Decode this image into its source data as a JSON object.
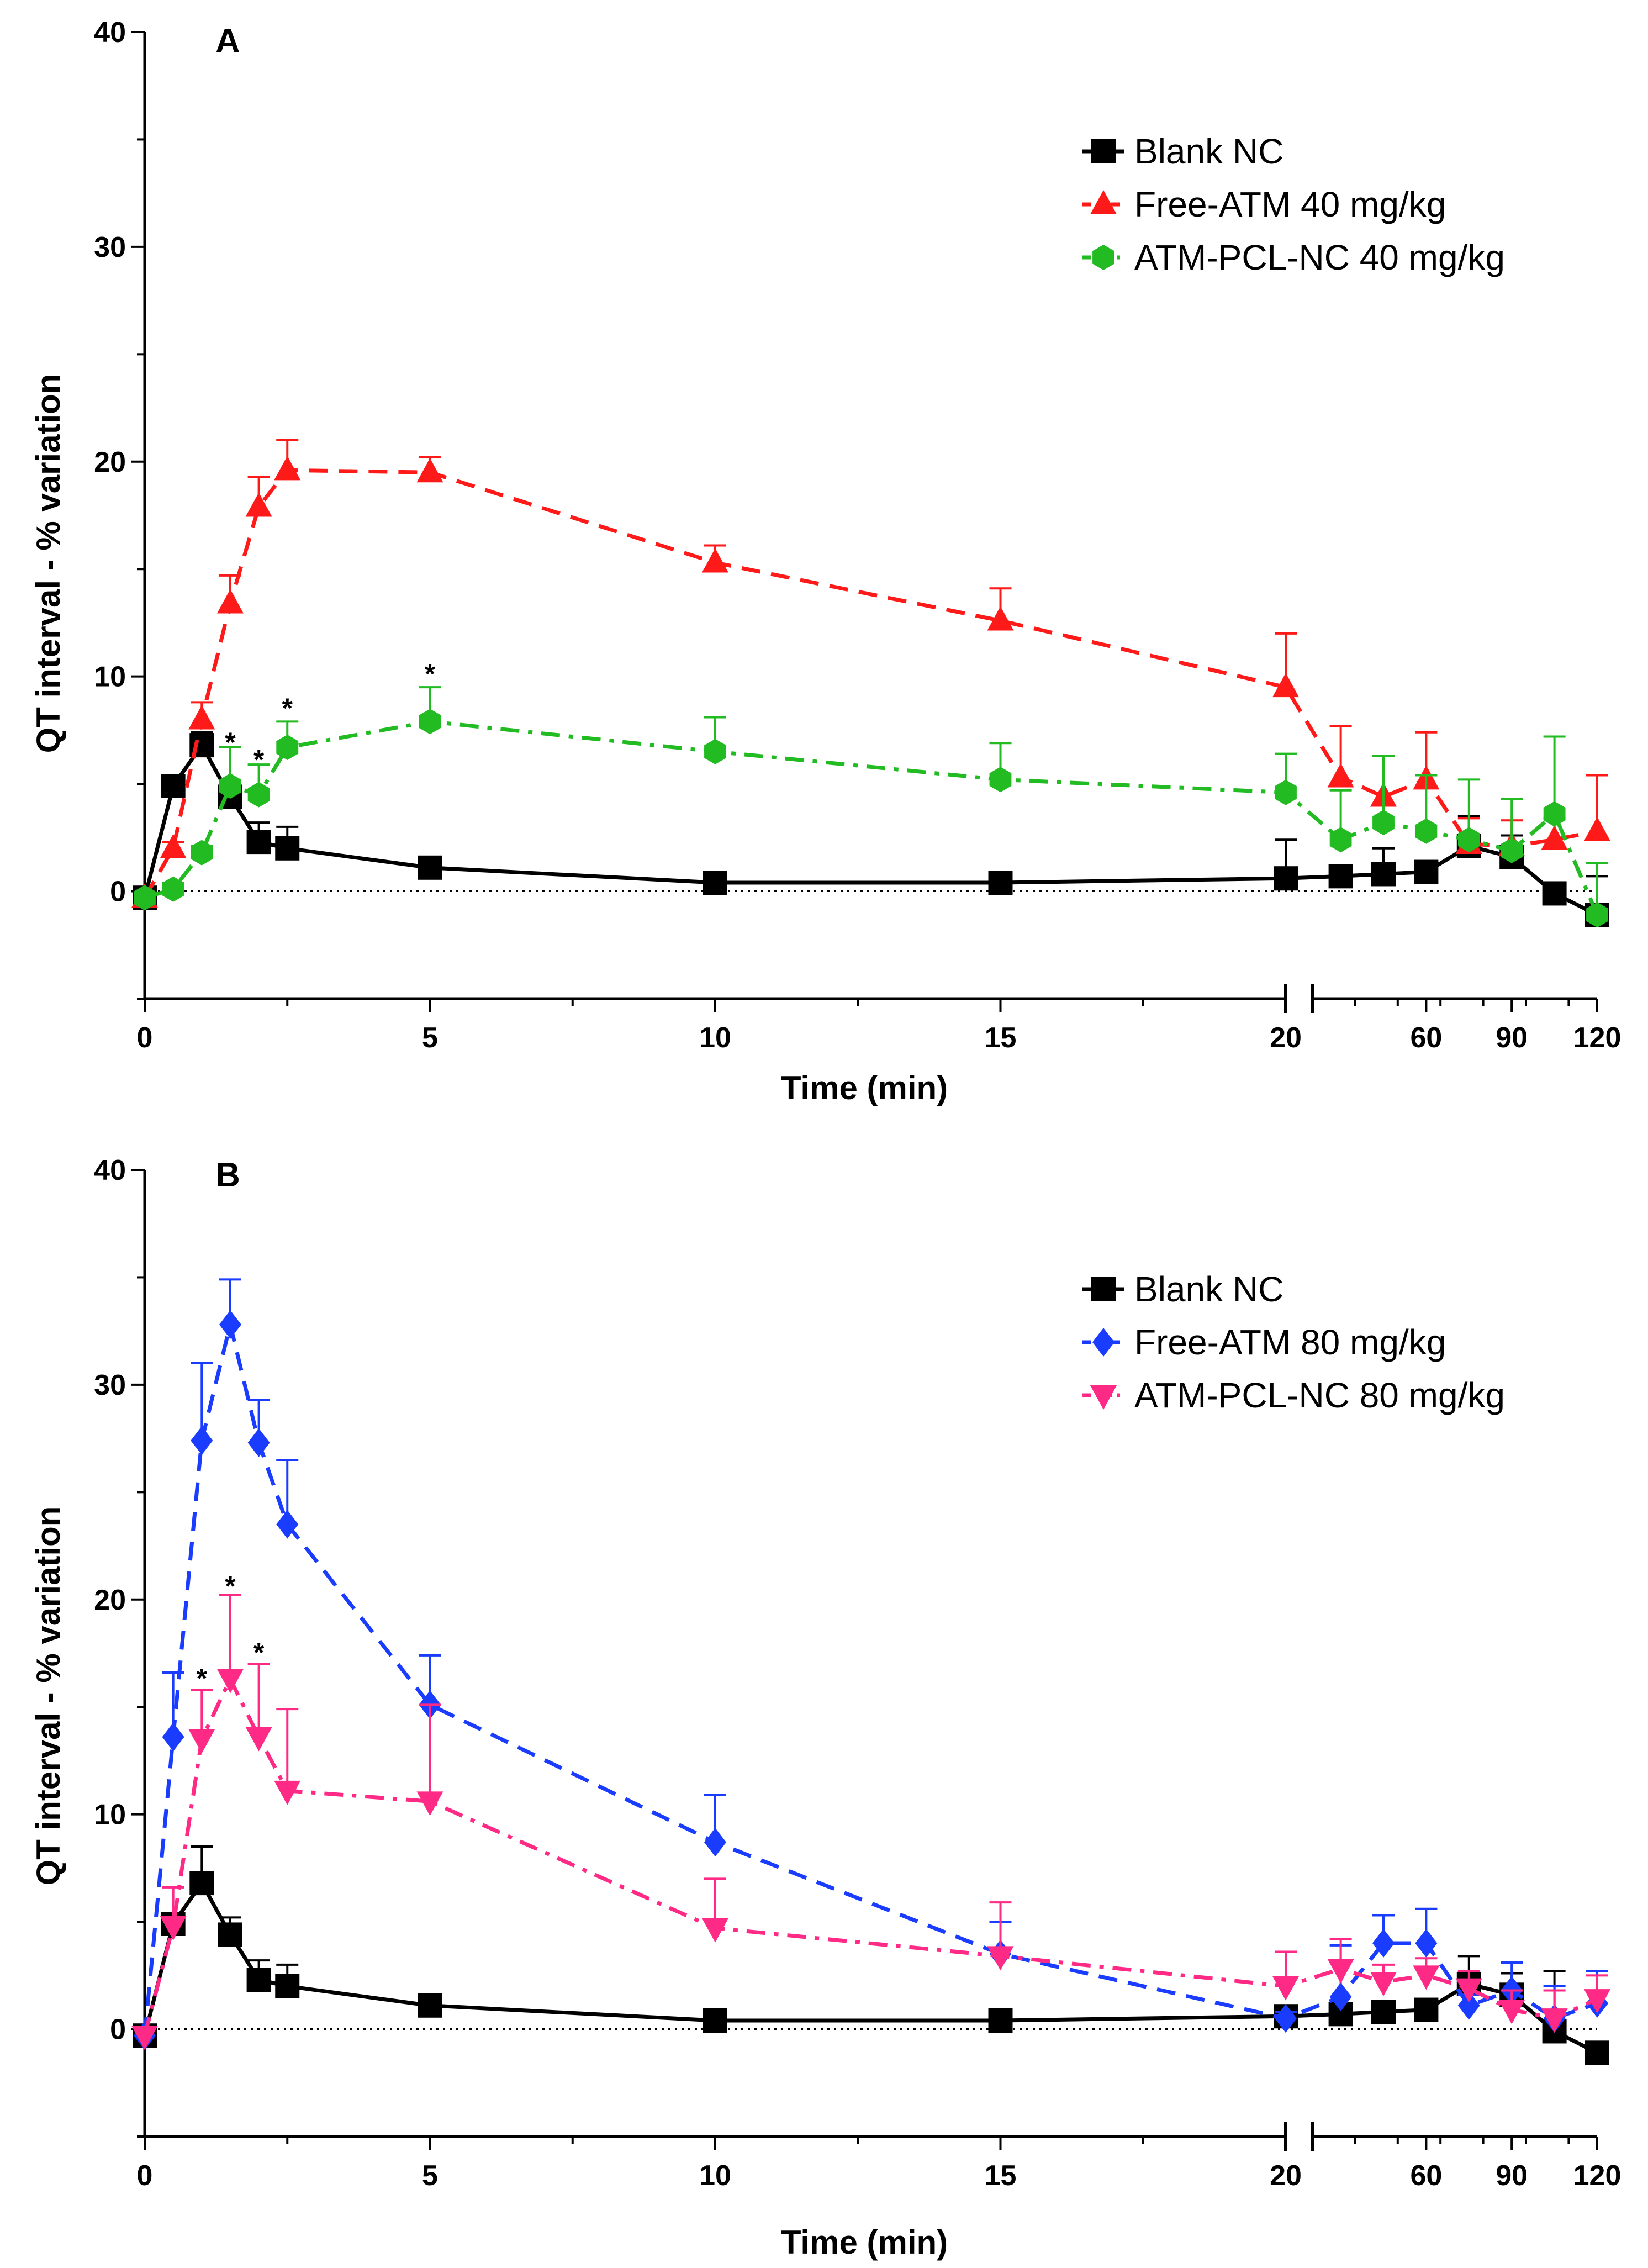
{
  "chart_data": [
    {
      "panel": "A",
      "type": "line",
      "ylabel": "QT interval - % variation",
      "xlabel": "Time (min)",
      "ylim": [
        -5,
        40
      ],
      "yticks": [
        0,
        10,
        20,
        30,
        40
      ],
      "xtick_labels": [
        "0",
        "5",
        "10",
        "15",
        "20",
        "60",
        "90",
        "120"
      ],
      "x_axis_note": "broken axis: 0-20 linear, then 20-120",
      "legend_position": "top-right",
      "series": [
        {
          "name": "Blank NC",
          "color": "#000000",
          "marker": "square",
          "dash": "solid",
          "x": [
            0,
            0.5,
            1,
            1.5,
            2,
            2.5,
            5,
            10,
            15,
            20,
            30,
            45,
            60,
            75,
            90,
            105,
            120
          ],
          "y": [
            -0.3,
            4.9,
            6.8,
            4.4,
            2.3,
            2.0,
            1.1,
            0.4,
            0.4,
            0.6,
            0.7,
            0.8,
            0.9,
            2.1,
            1.6,
            -0.1,
            -1.1
          ],
          "err": [
            0,
            0.5,
            0.6,
            0.6,
            0.9,
            1.0,
            0.3,
            0.3,
            0.3,
            1.8,
            0.4,
            1.2,
            0.3,
            1.4,
            1.0,
            0.3,
            1.8
          ]
        },
        {
          "name": "Free-ATM 40 mg/kg",
          "color": "#ff1a1a",
          "marker": "triangle-up",
          "dash": "dashed",
          "x": [
            0,
            0.5,
            1,
            1.5,
            2,
            2.5,
            5,
            10,
            15,
            20,
            30,
            45,
            60,
            75,
            90,
            105,
            120
          ],
          "y": [
            -0.3,
            2.0,
            8.0,
            13.4,
            17.9,
            19.6,
            19.5,
            15.3,
            12.6,
            9.5,
            5.3,
            4.4,
            5.2,
            2.2,
            2.1,
            2.4,
            2.8
          ],
          "err": [
            0,
            0.3,
            0.8,
            1.3,
            1.4,
            1.4,
            0.7,
            0.8,
            1.5,
            2.5,
            2.4,
            1.9,
            2.2,
            1.2,
            1.2,
            1.0,
            2.6
          ]
        },
        {
          "name": "ATM-PCL-NC 40 mg/kg",
          "color": "#22bb22",
          "marker": "hexagon",
          "dash": "dashdot",
          "x": [
            0,
            0.5,
            1,
            1.5,
            2,
            2.5,
            5,
            10,
            15,
            20,
            30,
            45,
            60,
            75,
            90,
            105,
            120
          ],
          "y": [
            -0.3,
            0.1,
            1.8,
            4.9,
            4.5,
            6.7,
            7.9,
            6.5,
            5.2,
            4.6,
            2.4,
            3.2,
            2.8,
            2.4,
            1.9,
            3.6,
            -1.1
          ],
          "err": [
            0,
            0.3,
            0.3,
            1.8,
            1.4,
            1.2,
            1.6,
            1.6,
            1.7,
            1.8,
            2.3,
            3.1,
            2.6,
            2.8,
            2.4,
            3.6,
            2.4
          ]
        }
      ],
      "annotations": [
        {
          "text": "*",
          "x": 1.5,
          "y": 6.9
        },
        {
          "text": "*",
          "x": 2,
          "y": 6.1
        },
        {
          "text": "*",
          "x": 2.5,
          "y": 8.5
        },
        {
          "text": "*",
          "x": 5,
          "y": 10.1
        }
      ]
    },
    {
      "panel": "B",
      "type": "line",
      "ylabel": "QT interval - % variation",
      "xlabel": "Time (min)",
      "ylim": [
        -5,
        40
      ],
      "yticks": [
        0,
        10,
        20,
        30,
        40
      ],
      "xtick_labels": [
        "0",
        "5",
        "10",
        "15",
        "20",
        "60",
        "90",
        "120"
      ],
      "x_axis_note": "broken axis: 0-20 linear, then 20-120",
      "legend_position": "top-right",
      "series": [
        {
          "name": "Blank NC",
          "color": "#000000",
          "marker": "square",
          "dash": "solid",
          "x": [
            0,
            0.5,
            1,
            1.5,
            2,
            2.5,
            5,
            10,
            15,
            20,
            30,
            45,
            60,
            75,
            90,
            105,
            120
          ],
          "y": [
            -0.3,
            4.9,
            6.8,
            4.4,
            2.3,
            2.0,
            1.1,
            0.4,
            0.4,
            0.6,
            0.7,
            0.8,
            0.9,
            2.1,
            1.6,
            -0.1,
            -1.1
          ],
          "err": [
            0,
            0.5,
            1.7,
            0.8,
            0.9,
            1.0,
            0.3,
            0.3,
            0.3,
            0.3,
            0.3,
            0.3,
            0.3,
            1.3,
            1.0,
            2.8,
            0.3
          ]
        },
        {
          "name": "Free-ATM 80 mg/kg",
          "color": "#1a3cff",
          "marker": "diamond",
          "dash": "dashed",
          "x": [
            0,
            0.5,
            1,
            1.5,
            2,
            2.5,
            5,
            10,
            15,
            20,
            30,
            45,
            60,
            75,
            90,
            105,
            120
          ],
          "y": [
            -0.3,
            13.6,
            27.4,
            32.8,
            27.3,
            23.5,
            15.1,
            8.7,
            3.5,
            0.5,
            1.5,
            4.0,
            4.0,
            1.1,
            1.8,
            0.5,
            1.2
          ],
          "err": [
            0,
            3.0,
            3.6,
            2.1,
            2.0,
            3.0,
            2.3,
            2.2,
            1.5,
            0.3,
            2.4,
            1.3,
            1.6,
            0.5,
            1.3,
            1.5,
            1.5
          ]
        },
        {
          "name": "ATM-PCL-NC 80 mg/kg",
          "color": "#ff2a85",
          "marker": "triangle-down",
          "dash": "dashdot",
          "x": [
            0,
            0.5,
            1,
            1.5,
            2,
            2.5,
            5,
            10,
            15,
            20,
            30,
            45,
            60,
            75,
            90,
            105,
            120
          ],
          "y": [
            -0.3,
            4.8,
            13.5,
            16.3,
            13.6,
            11.1,
            10.6,
            4.7,
            3.4,
            2.0,
            2.8,
            2.2,
            2.5,
            1.9,
            0.9,
            0.5,
            1.4
          ],
          "err": [
            0,
            1.8,
            2.3,
            3.9,
            3.4,
            3.8,
            4.5,
            2.3,
            2.5,
            1.6,
            1.4,
            0.8,
            0.8,
            0.8,
            0.9,
            1.3,
            1.1
          ]
        }
      ],
      "annotations": [
        {
          "text": "*",
          "x": 1,
          "y": 16.3
        },
        {
          "text": "*",
          "x": 1.5,
          "y": 20.6
        },
        {
          "text": "*",
          "x": 2,
          "y": 17.5
        }
      ]
    }
  ]
}
